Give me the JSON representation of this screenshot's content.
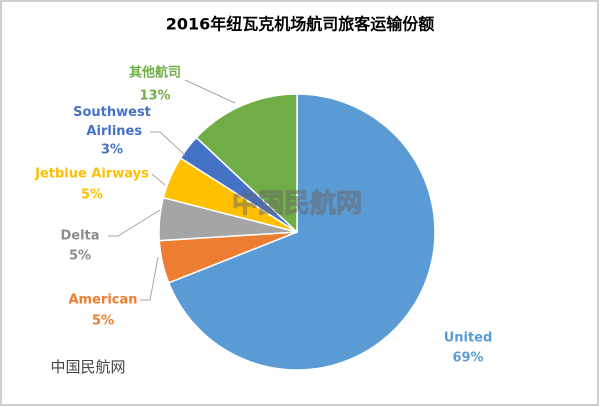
{
  "chart_data": {
    "type": "pie",
    "title": "2016年纽瓦克机场航司旅客运输份额",
    "categories": [
      "United",
      "American",
      "Delta",
      "Jetblue Airways",
      "Southwest Airlines",
      "其他航司"
    ],
    "values": [
      69,
      5,
      5,
      5,
      3,
      13
    ],
    "value_labels": [
      "69%",
      "5%",
      "5%",
      "5%",
      "3%",
      "13%"
    ],
    "colors": [
      "#5b9bd5",
      "#ed7d31",
      "#a5a5a5",
      "#ffc000",
      "#4472c4",
      "#70ad47"
    ],
    "watermarks": [
      "中国民航网",
      "中国民航网"
    ]
  }
}
